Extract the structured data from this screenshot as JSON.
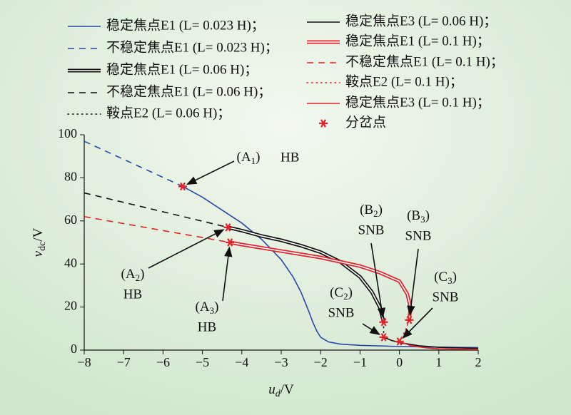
{
  "chart_data": {
    "type": "line",
    "x_label": [
      "u",
      "d",
      "/V"
    ],
    "y_label": [
      "v",
      "dc",
      "/V"
    ],
    "xlim": [
      -8,
      2
    ],
    "ylim": [
      0,
      100
    ],
    "xticks": [
      {
        "value": -8,
        "label": "−8"
      },
      {
        "value": -7,
        "label": "−7"
      },
      {
        "value": -6,
        "label": "−6"
      },
      {
        "value": -5,
        "label": "−5"
      },
      {
        "value": -4,
        "label": "−4"
      },
      {
        "value": -3,
        "label": "−3"
      },
      {
        "value": -2,
        "label": "−2"
      },
      {
        "value": -1,
        "label": "−1"
      },
      0,
      1,
      2
    ],
    "yticks": [
      0,
      20,
      40,
      60,
      80,
      100
    ],
    "series": [
      {
        "name": "稳定焦点E1 (L= 0.023 H)；",
        "color": "#2b47a8",
        "style": "solid",
        "x": [
          -5.5,
          -5,
          -4.5,
          -4,
          -3.5,
          -3,
          -2.7,
          -2.5,
          -2.3,
          -2.2,
          -2.1,
          -2,
          -1.8,
          -1.5,
          -1,
          0,
          1,
          2
        ],
        "y": [
          76,
          71,
          65,
          59,
          51.5,
          42,
          34,
          27,
          18,
          13,
          9,
          6,
          3.8,
          2.8,
          2.2,
          1.7,
          1.4,
          1.2
        ]
      },
      {
        "name": "不稳定焦点E1 (L= 0.023 H)；",
        "color": "#2b47a8",
        "style": "dashed",
        "x": [
          -8,
          -5.5
        ],
        "y": [
          97,
          76
        ]
      },
      {
        "name": "稳定焦点E1 (L= 0.06 H)；",
        "color": "#111111",
        "style": "double",
        "x": [
          -4.35,
          -4,
          -3.5,
          -3,
          -2.5,
          -2,
          -1.5,
          -1,
          -0.7,
          -0.5,
          -0.4
        ],
        "y": [
          57,
          55.5,
          53,
          51,
          48.5,
          45.5,
          41,
          34,
          27,
          20,
          13
        ]
      },
      {
        "name": "不稳定焦点E1 (L= 0.06 H)；",
        "color": "#111111",
        "style": "dashed",
        "x": [
          -8,
          -4.35
        ],
        "y": [
          73,
          57
        ]
      },
      {
        "name": "鞍点E2 (L= 0.06 H)；",
        "color": "#111111",
        "style": "dotted",
        "x": [
          -0.4,
          -0.4,
          -0.4
        ],
        "y": [
          13,
          9,
          6
        ]
      },
      {
        "name": "稳定焦点E3 (L= 0.06 H)；",
        "color": "#111111",
        "style": "solid",
        "x": [
          -0.4,
          -0.2,
          0,
          0.5,
          1,
          2
        ],
        "y": [
          6,
          4.5,
          3.5,
          2,
          1.3,
          0.8
        ]
      },
      {
        "name": "稳定焦点E1 (L= 0.1 H)；",
        "color": "#e3212b",
        "style": "double",
        "x": [
          -4.3,
          -4,
          -3,
          -2,
          -1,
          -0.5,
          0,
          0.2,
          0.28,
          0.25
        ],
        "y": [
          50,
          49,
          46,
          43,
          39,
          36,
          32,
          26,
          20,
          14
        ]
      },
      {
        "name": "不稳定焦点E1 (L= 0.1 H)；",
        "color": "#e3212b",
        "style": "dashed",
        "x": [
          -8,
          -4.3
        ],
        "y": [
          62,
          50
        ]
      },
      {
        "name": "鞍点E2 (L= 0.1 H)；",
        "color": "#e3212b",
        "style": "dotted",
        "x": [
          0.25,
          0.15,
          0
        ],
        "y": [
          14,
          9,
          4
        ]
      },
      {
        "name": "稳定焦点E3 (L= 0.1 H)；",
        "color": "#e3212b",
        "style": "solid",
        "x": [
          0,
          0.3,
          0.7,
          1,
          2
        ],
        "y": [
          4,
          2,
          1,
          0.6,
          0.3
        ]
      }
    ],
    "bifurcation": {
      "name": "分岔点",
      "color": "#e3212b",
      "x": [
        -5.5,
        -4.35,
        -4.3,
        -0.4,
        0.25,
        -0.4,
        0
      ],
      "y": [
        76,
        57,
        50,
        13,
        14,
        6,
        4
      ],
      "labels": [
        {
          "text": [
            "(A",
            "1",
            ")"
          ],
          "kind": "HB"
        },
        {
          "text": [
            "(A",
            "2",
            ")"
          ],
          "kind": "HB"
        },
        {
          "text": [
            "(A",
            "3",
            ")"
          ],
          "kind": "HB"
        },
        {
          "text": [
            "(B",
            "2",
            ")"
          ],
          "kind": "SNB"
        },
        {
          "text": [
            "(B",
            "3",
            ")"
          ],
          "kind": "SNB"
        },
        {
          "text": [
            "(C",
            "2",
            ")"
          ],
          "kind": "SNB"
        },
        {
          "text": [
            "(C",
            "3",
            ")"
          ],
          "kind": "SNB"
        }
      ]
    }
  }
}
